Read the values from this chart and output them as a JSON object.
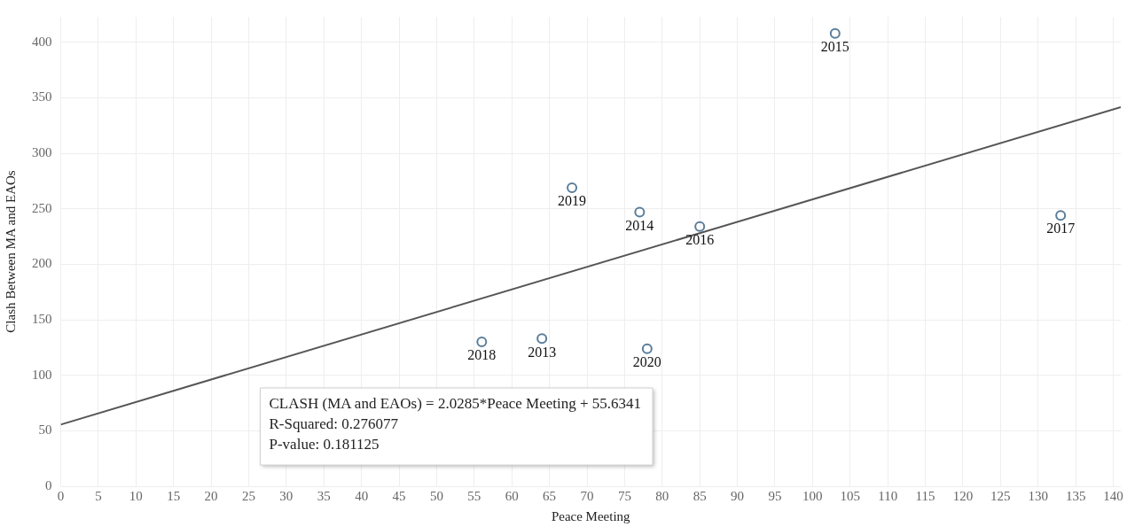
{
  "chart_data": {
    "type": "scatter",
    "xlabel": "Peace Meeting",
    "ylabel": "Clash Between MA and EAOs",
    "xlim": [
      0,
      141
    ],
    "xticks": [
      0,
      5,
      10,
      15,
      20,
      25,
      30,
      35,
      40,
      45,
      50,
      55,
      60,
      65,
      70,
      75,
      80,
      85,
      90,
      95,
      100,
      105,
      110,
      115,
      120,
      125,
      130,
      135,
      140
    ],
    "ylim": [
      0,
      423
    ],
    "yticks": [
      0,
      50,
      100,
      150,
      200,
      250,
      300,
      350,
      400
    ],
    "grid": true,
    "legend": false,
    "series": [
      {
        "marker": "circle",
        "color": "#5a7d9a",
        "x": [
          64,
          77,
          103,
          85,
          133,
          56,
          68,
          78
        ],
        "values": [
          133,
          247,
          408,
          234,
          244,
          130,
          269,
          124
        ]
      },
      {
        "type": "line",
        "line_style": "solid",
        "color": "#555555",
        "x": [
          0,
          141
        ],
        "values": [
          55.6,
          341.7
        ]
      }
    ],
    "annotations": [
      {
        "text": "2013",
        "x": 64,
        "y": 133
      },
      {
        "text": "2014",
        "x": 77,
        "y": 247
      },
      {
        "text": "2015",
        "x": 103,
        "y": 408
      },
      {
        "text": "2016",
        "x": 85,
        "y": 234
      },
      {
        "text": "2017",
        "x": 133,
        "y": 244
      },
      {
        "text": "2018",
        "x": 56,
        "y": 130
      },
      {
        "text": "2019",
        "x": 68,
        "y": 269
      },
      {
        "text": "2020",
        "x": 78,
        "y": 124
      },
      "CLASH (MA and EAOs) = 2.0285*Peace Meeting + 55.6341",
      "R-Squared: 0.276077",
      "P-value: 0.181125"
    ]
  }
}
